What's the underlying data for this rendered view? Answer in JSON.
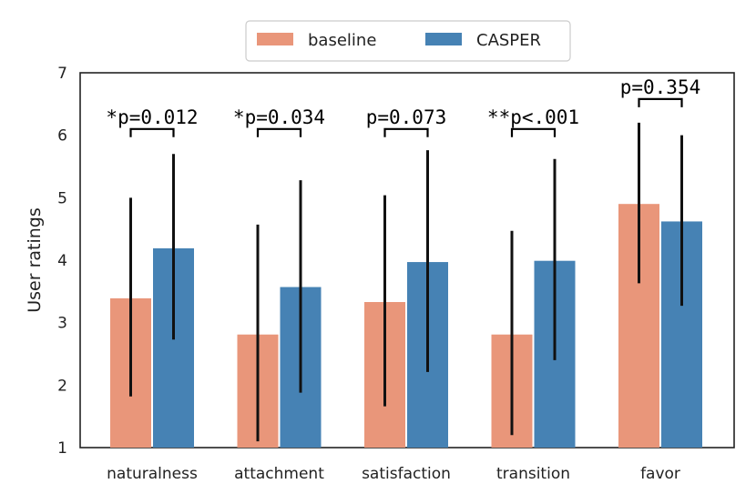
{
  "chart_data": {
    "type": "bar",
    "categories": [
      "naturalness",
      "attachment",
      "satisfaction",
      "transition",
      "favor"
    ],
    "series": [
      {
        "name": "baseline",
        "color": "#e9967a",
        "values": [
          3.39,
          2.81,
          3.33,
          2.81,
          4.9
        ],
        "error_low": [
          1.82,
          1.1,
          1.66,
          1.2,
          3.63
        ],
        "error_high": [
          5.0,
          4.57,
          5.04,
          4.47,
          6.2
        ]
      },
      {
        "name": "CASPER",
        "color": "#4682b4",
        "values": [
          4.19,
          3.57,
          3.97,
          3.99,
          4.62
        ],
        "error_low": [
          2.73,
          1.88,
          2.21,
          2.4,
          3.27
        ],
        "error_high": [
          5.7,
          5.28,
          5.76,
          5.62,
          6.0
        ]
      }
    ],
    "annotations": [
      {
        "category": "naturalness",
        "text": "*p=0.012",
        "bracket_y": 6.1
      },
      {
        "category": "attachment",
        "text": "*p=0.034",
        "bracket_y": 6.1
      },
      {
        "category": "satisfaction",
        "text": "p=0.073",
        "bracket_y": 6.1
      },
      {
        "category": "transition",
        "text": "**p<.001",
        "bracket_y": 6.1
      },
      {
        "category": "favor",
        "text": "p=0.354",
        "bracket_y": 6.58
      }
    ],
    "title": "",
    "xlabel": "",
    "ylabel": "User ratings",
    "ylim": [
      1,
      7
    ],
    "yticks": [
      "1",
      "2",
      "3",
      "4",
      "5",
      "6",
      "7"
    ],
    "legend_position": "top-center"
  }
}
